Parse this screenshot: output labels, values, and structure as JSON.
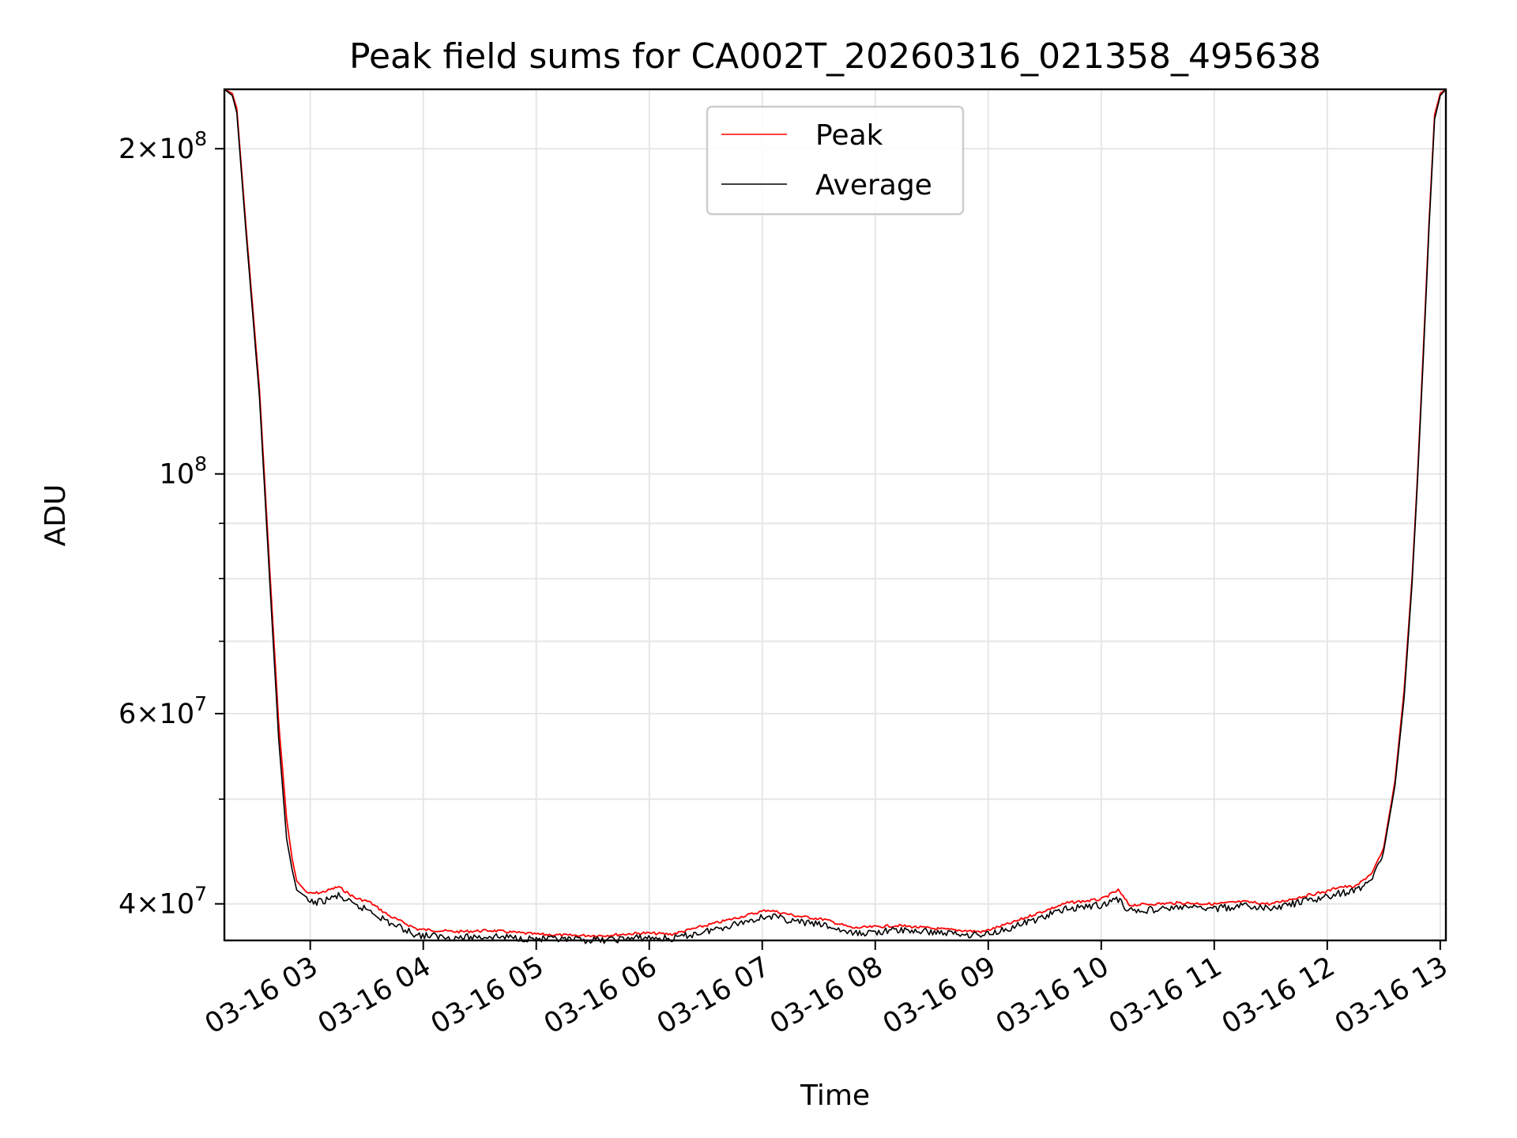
{
  "chart_data": {
    "type": "line",
    "title": "Peak field sums for CA002T_20260316_021358_495638",
    "xlabel": "Time",
    "ylabel": "ADU",
    "yscale": "log",
    "ylim": [
      37000000,
      227000000
    ],
    "xlim_hours": [
      2.24,
      13.05
    ],
    "grid": true,
    "legend_position": "upper center",
    "x_ticks": [
      {
        "hour": 3,
        "label": "03-16 03"
      },
      {
        "hour": 4,
        "label": "03-16 04"
      },
      {
        "hour": 5,
        "label": "03-16 05"
      },
      {
        "hour": 6,
        "label": "03-16 06"
      },
      {
        "hour": 7,
        "label": "03-16 07"
      },
      {
        "hour": 8,
        "label": "03-16 08"
      },
      {
        "hour": 9,
        "label": "03-16 09"
      },
      {
        "hour": 10,
        "label": "03-16 10"
      },
      {
        "hour": 11,
        "label": "03-16 11"
      },
      {
        "hour": 12,
        "label": "03-16 12"
      },
      {
        "hour": 13,
        "label": "03-16 13"
      }
    ],
    "y_ticks": [
      {
        "value": 40000000,
        "mantissa": "4",
        "exp": "7"
      },
      {
        "value": 60000000,
        "mantissa": "6",
        "exp": "7"
      },
      {
        "value": 100000000,
        "mantissa": "",
        "exp": "8"
      },
      {
        "value": 200000000,
        "mantissa": "2",
        "exp": "8"
      }
    ],
    "y_minor_ticks": [
      50000000,
      70000000,
      80000000,
      90000000
    ],
    "series": [
      {
        "name": "Peak",
        "color": "#ff0000",
        "x_hours": [
          2.24,
          2.31,
          2.35,
          2.43,
          2.55,
          2.64,
          2.72,
          2.79,
          2.84,
          2.88,
          2.95,
          3.0,
          3.1,
          3.25,
          3.4,
          3.52,
          3.7,
          3.95,
          4.3,
          4.6,
          5.0,
          5.3,
          5.6,
          5.95,
          6.2,
          6.5,
          6.8,
          7.05,
          7.3,
          7.55,
          7.8,
          8.2,
          8.6,
          8.95,
          9.2,
          9.4,
          9.7,
          10.0,
          10.15,
          10.25,
          10.45,
          10.7,
          11.0,
          11.25,
          11.5,
          11.8,
          12.0,
          12.1,
          12.25,
          12.4,
          12.5,
          12.6,
          12.68,
          12.75,
          12.8,
          12.85,
          12.9,
          12.95,
          13.0,
          13.05
        ],
        "values": [
          227000000,
          225000000,
          218000000,
          170000000,
          120000000,
          82000000,
          59000000,
          48000000,
          44000000,
          42000000,
          41200000,
          41000000,
          41100000,
          41600000,
          40600000,
          40300000,
          39100000,
          38000000,
          37800000,
          37900000,
          37600000,
          37500000,
          37500000,
          37700000,
          37600000,
          38300000,
          39000000,
          39600000,
          39100000,
          38800000,
          38100000,
          38300000,
          38000000,
          37800000,
          38500000,
          39200000,
          40200000,
          40500000,
          41300000,
          40000000,
          40100000,
          40200000,
          40100000,
          40300000,
          40100000,
          40800000,
          41200000,
          41600000,
          41600000,
          42900000,
          45100000,
          52000000,
          63000000,
          80000000,
          100000000,
          130000000,
          170000000,
          215000000,
          225000000,
          227000000
        ]
      },
      {
        "name": "Average",
        "color": "#000000",
        "x_hours": [
          2.24,
          2.31,
          2.35,
          2.43,
          2.55,
          2.64,
          2.72,
          2.79,
          2.84,
          2.88,
          2.95,
          3.0,
          3.1,
          3.25,
          3.4,
          3.52,
          3.7,
          3.95,
          4.3,
          4.6,
          5.0,
          5.3,
          5.6,
          5.95,
          6.2,
          6.5,
          6.8,
          7.05,
          7.3,
          7.55,
          7.8,
          8.2,
          8.6,
          8.95,
          9.2,
          9.4,
          9.7,
          10.0,
          10.15,
          10.25,
          10.45,
          10.7,
          11.0,
          11.25,
          11.5,
          11.8,
          12.0,
          12.1,
          12.25,
          12.4,
          12.5,
          12.6,
          12.68,
          12.75,
          12.8,
          12.85,
          12.9,
          12.95,
          13.0,
          13.05
        ],
        "values": [
          227000000,
          224000000,
          216000000,
          168000000,
          118000000,
          80000000,
          57000000,
          46000000,
          43000000,
          41200000,
          40700000,
          40400000,
          40500000,
          41000000,
          40100000,
          39800000,
          38700000,
          37700000,
          37500000,
          37600000,
          37400000,
          37300000,
          37300000,
          37500000,
          37400000,
          38000000,
          38700000,
          39300000,
          38800000,
          38500000,
          37800000,
          38100000,
          37900000,
          37700000,
          38300000,
          38900000,
          39900000,
          40200000,
          40700000,
          39700000,
          39800000,
          40000000,
          39900000,
          40100000,
          39900000,
          40500000,
          40900000,
          41200000,
          41400000,
          42600000,
          44800000,
          51500000,
          62000000,
          79000000,
          99000000,
          128000000,
          168000000,
          213000000,
          224000000,
          227000000
        ]
      }
    ]
  }
}
